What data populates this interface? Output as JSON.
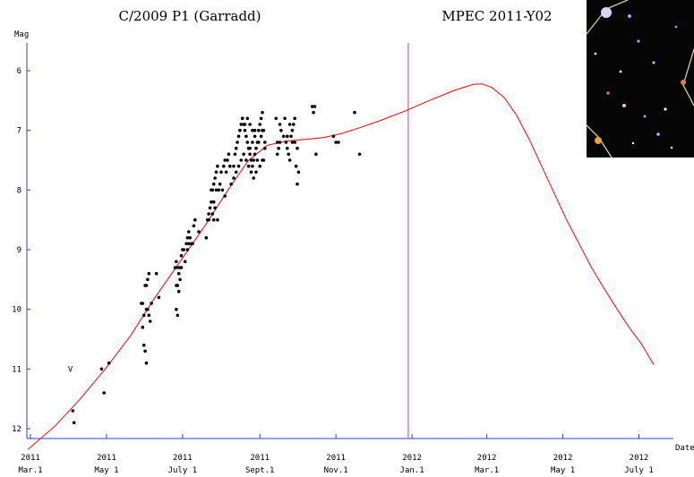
{
  "chart_data": {
    "type": "scatter",
    "title": "C/2009 P1 (Garradd)",
    "subtitle": "MPEC 2011-Y02",
    "ylabel": "Mag",
    "xlabel": "Date",
    "ylim": [
      12.4,
      5.55
    ],
    "y_inverted": true,
    "y_ticks": [
      6,
      7,
      8,
      9,
      10,
      11,
      12
    ],
    "x_unit": "days since 2011-03-01",
    "xlim": [
      -2,
      502
    ],
    "x_ticks": [
      {
        "x": 0,
        "year": "2011",
        "label": "Mar.1"
      },
      {
        "x": 61,
        "year": "2011",
        "label": "May 1"
      },
      {
        "x": 122,
        "year": "2011",
        "label": "July 1"
      },
      {
        "x": 184,
        "year": "2011",
        "label": "Sept.1"
      },
      {
        "x": 245,
        "year": "2011",
        "label": "Nov.1"
      },
      {
        "x": 306,
        "year": "2012",
        "label": "Jan.1"
      },
      {
        "x": 366,
        "year": "2012",
        "label": "Mar.1"
      },
      {
        "x": 427,
        "year": "2012",
        "label": "May 1"
      },
      {
        "x": 488,
        "year": "2012",
        "label": "July 1"
      }
    ],
    "current_date_marker": {
      "x": 303,
      "color": "#cc33cc"
    },
    "curve_color": "#ff0000",
    "point_color": "#000000",
    "annotations": [
      {
        "text": "V",
        "x": 32,
        "y": 11.0
      }
    ],
    "model_curve": [
      [
        -2,
        12.35
      ],
      [
        20,
        11.95
      ],
      [
        40,
        11.5
      ],
      [
        60,
        11.0
      ],
      [
        80,
        10.45
      ],
      [
        100,
        9.8
      ],
      [
        120,
        9.2
      ],
      [
        140,
        8.6
      ],
      [
        160,
        7.95
      ],
      [
        175,
        7.5
      ],
      [
        190,
        7.25
      ],
      [
        205,
        7.18
      ],
      [
        220,
        7.15
      ],
      [
        235,
        7.12
      ],
      [
        250,
        7.05
      ],
      [
        265,
        6.95
      ],
      [
        280,
        6.84
      ],
      [
        300,
        6.68
      ],
      [
        320,
        6.5
      ],
      [
        340,
        6.33
      ],
      [
        355,
        6.23
      ],
      [
        362,
        6.22
      ],
      [
        370,
        6.28
      ],
      [
        380,
        6.45
      ],
      [
        390,
        6.75
      ],
      [
        400,
        7.15
      ],
      [
        410,
        7.6
      ],
      [
        420,
        8.05
      ],
      [
        430,
        8.5
      ],
      [
        440,
        8.9
      ],
      [
        450,
        9.3
      ],
      [
        460,
        9.65
      ],
      [
        470,
        9.98
      ],
      [
        480,
        10.3
      ],
      [
        490,
        10.58
      ],
      [
        500,
        10.93
      ]
    ],
    "observations": [
      [
        34,
        11.7
      ],
      [
        35,
        11.9
      ],
      [
        57,
        11.0
      ],
      [
        59,
        11.4
      ],
      [
        63,
        10.9
      ],
      [
        89,
        9.9
      ],
      [
        90,
        10.3
      ],
      [
        91,
        10.6
      ],
      [
        92,
        10.7
      ],
      [
        93,
        10.9
      ],
      [
        90,
        9.9
      ],
      [
        91,
        10.1
      ],
      [
        92,
        9.6
      ],
      [
        93,
        9.6
      ],
      [
        94,
        9.5
      ],
      [
        95,
        9.4
      ],
      [
        93,
        10.0
      ],
      [
        94,
        10.0
      ],
      [
        95,
        10.1
      ],
      [
        96,
        10.2
      ],
      [
        97,
        9.9
      ],
      [
        101,
        9.4
      ],
      [
        103,
        9.8
      ],
      [
        116,
        9.3
      ],
      [
        117,
        9.2
      ],
      [
        118,
        9.3
      ],
      [
        119,
        9.4
      ],
      [
        120,
        9.5
      ],
      [
        117,
        9.6
      ],
      [
        118,
        9.6
      ],
      [
        119,
        9.7
      ],
      [
        117,
        10.0
      ],
      [
        118,
        10.1
      ],
      [
        120,
        9.3
      ],
      [
        121,
        9.3
      ],
      [
        122,
        9.0
      ],
      [
        123,
        9.0
      ],
      [
        121,
        9.1
      ],
      [
        124,
        9.2
      ],
      [
        125,
        8.9
      ],
      [
        126,
        8.8
      ],
      [
        127,
        8.7
      ],
      [
        128,
        8.8
      ],
      [
        129,
        8.9
      ],
      [
        130,
        8.9
      ],
      [
        126,
        9.0
      ],
      [
        127,
        8.9
      ],
      [
        131,
        8.6
      ],
      [
        132,
        8.5
      ],
      [
        135,
        8.7
      ],
      [
        141,
        8.8
      ],
      [
        142,
        8.5
      ],
      [
        143,
        8.4
      ],
      [
        144,
        8.3
      ],
      [
        145,
        8.2
      ],
      [
        146,
        8.0
      ],
      [
        147,
        7.9
      ],
      [
        148,
        7.8
      ],
      [
        149,
        7.7
      ],
      [
        150,
        7.6
      ],
      [
        146,
        8.4
      ],
      [
        147,
        8.5
      ],
      [
        148,
        8.3
      ],
      [
        150,
        8.5
      ],
      [
        143,
        8.5
      ],
      [
        145,
        8.0
      ],
      [
        147,
        8.2
      ],
      [
        149,
        8.0
      ],
      [
        151,
        8.0
      ],
      [
        152,
        7.9
      ],
      [
        153,
        7.7
      ],
      [
        155,
        7.6
      ],
      [
        156,
        7.5
      ],
      [
        157,
        7.7
      ],
      [
        158,
        7.5
      ],
      [
        159,
        7.4
      ],
      [
        154,
        8.0
      ],
      [
        156,
        8.1
      ],
      [
        160,
        7.6
      ],
      [
        161,
        7.9
      ],
      [
        163,
        7.6
      ],
      [
        164,
        7.4
      ],
      [
        165,
        7.3
      ],
      [
        166,
        7.2
      ],
      [
        167,
        7.1
      ],
      [
        168,
        7.0
      ],
      [
        169,
        6.9
      ],
      [
        170,
        6.8
      ],
      [
        171,
        6.9
      ],
      [
        172,
        7.0
      ],
      [
        173,
        7.1
      ],
      [
        174,
        7.2
      ],
      [
        175,
        7.3
      ],
      [
        176,
        7.4
      ],
      [
        177,
        7.5
      ],
      [
        178,
        7.6
      ],
      [
        179,
        7.5
      ],
      [
        180,
        7.4
      ],
      [
        181,
        7.3
      ],
      [
        182,
        7.2
      ],
      [
        183,
        7.0
      ],
      [
        184,
        6.9
      ],
      [
        185,
        6.8
      ],
      [
        186,
        6.7
      ],
      [
        187,
        7.0
      ],
      [
        188,
        7.2
      ],
      [
        163,
        7.8
      ],
      [
        165,
        7.7
      ],
      [
        167,
        7.6
      ],
      [
        169,
        7.5
      ],
      [
        171,
        7.4
      ],
      [
        173,
        7.5
      ],
      [
        175,
        7.6
      ],
      [
        177,
        7.7
      ],
      [
        179,
        7.8
      ],
      [
        181,
        7.7
      ],
      [
        170,
        6.8
      ],
      [
        172,
        6.9
      ],
      [
        174,
        6.8
      ],
      [
        176,
        6.9
      ],
      [
        178,
        7.0
      ],
      [
        180,
        7.1
      ],
      [
        182,
        7.5
      ],
      [
        184,
        7.6
      ],
      [
        186,
        7.5
      ],
      [
        176,
        7.3
      ],
      [
        178,
        7.2
      ],
      [
        180,
        7.0
      ],
      [
        183,
        7.2
      ],
      [
        185,
        7.1
      ],
      [
        186,
        7.0
      ],
      [
        187,
        7.5
      ],
      [
        188,
        7.3
      ],
      [
        197,
        6.8
      ],
      [
        198,
        7.2
      ],
      [
        199,
        7.3
      ],
      [
        200,
        6.9
      ],
      [
        201,
        7.0
      ],
      [
        203,
        7.1
      ],
      [
        204,
        6.8
      ],
      [
        205,
        7.2
      ],
      [
        206,
        7.3
      ],
      [
        207,
        7.4
      ],
      [
        208,
        7.5
      ],
      [
        209,
        7.1
      ],
      [
        210,
        7.0
      ],
      [
        211,
        6.9
      ],
      [
        212,
        6.8
      ],
      [
        213,
        7.6
      ],
      [
        214,
        7.9
      ],
      [
        215,
        7.7
      ],
      [
        198,
        7.4
      ],
      [
        200,
        7.2
      ],
      [
        206,
        7.1
      ],
      [
        208,
        6.9
      ],
      [
        210,
        7.2
      ],
      [
        212,
        7.2
      ],
      [
        214,
        7.3
      ],
      [
        226,
        6.6
      ],
      [
        227,
        6.7
      ],
      [
        228,
        6.6
      ],
      [
        229,
        7.4
      ],
      [
        243,
        7.1
      ],
      [
        245,
        7.2
      ],
      [
        247,
        7.2
      ],
      [
        260,
        6.7
      ],
      [
        264,
        7.4
      ]
    ]
  },
  "thumbnail": {
    "caption_icon": "star-field-image",
    "background": "#050505",
    "line_color": "#d9d08a"
  }
}
